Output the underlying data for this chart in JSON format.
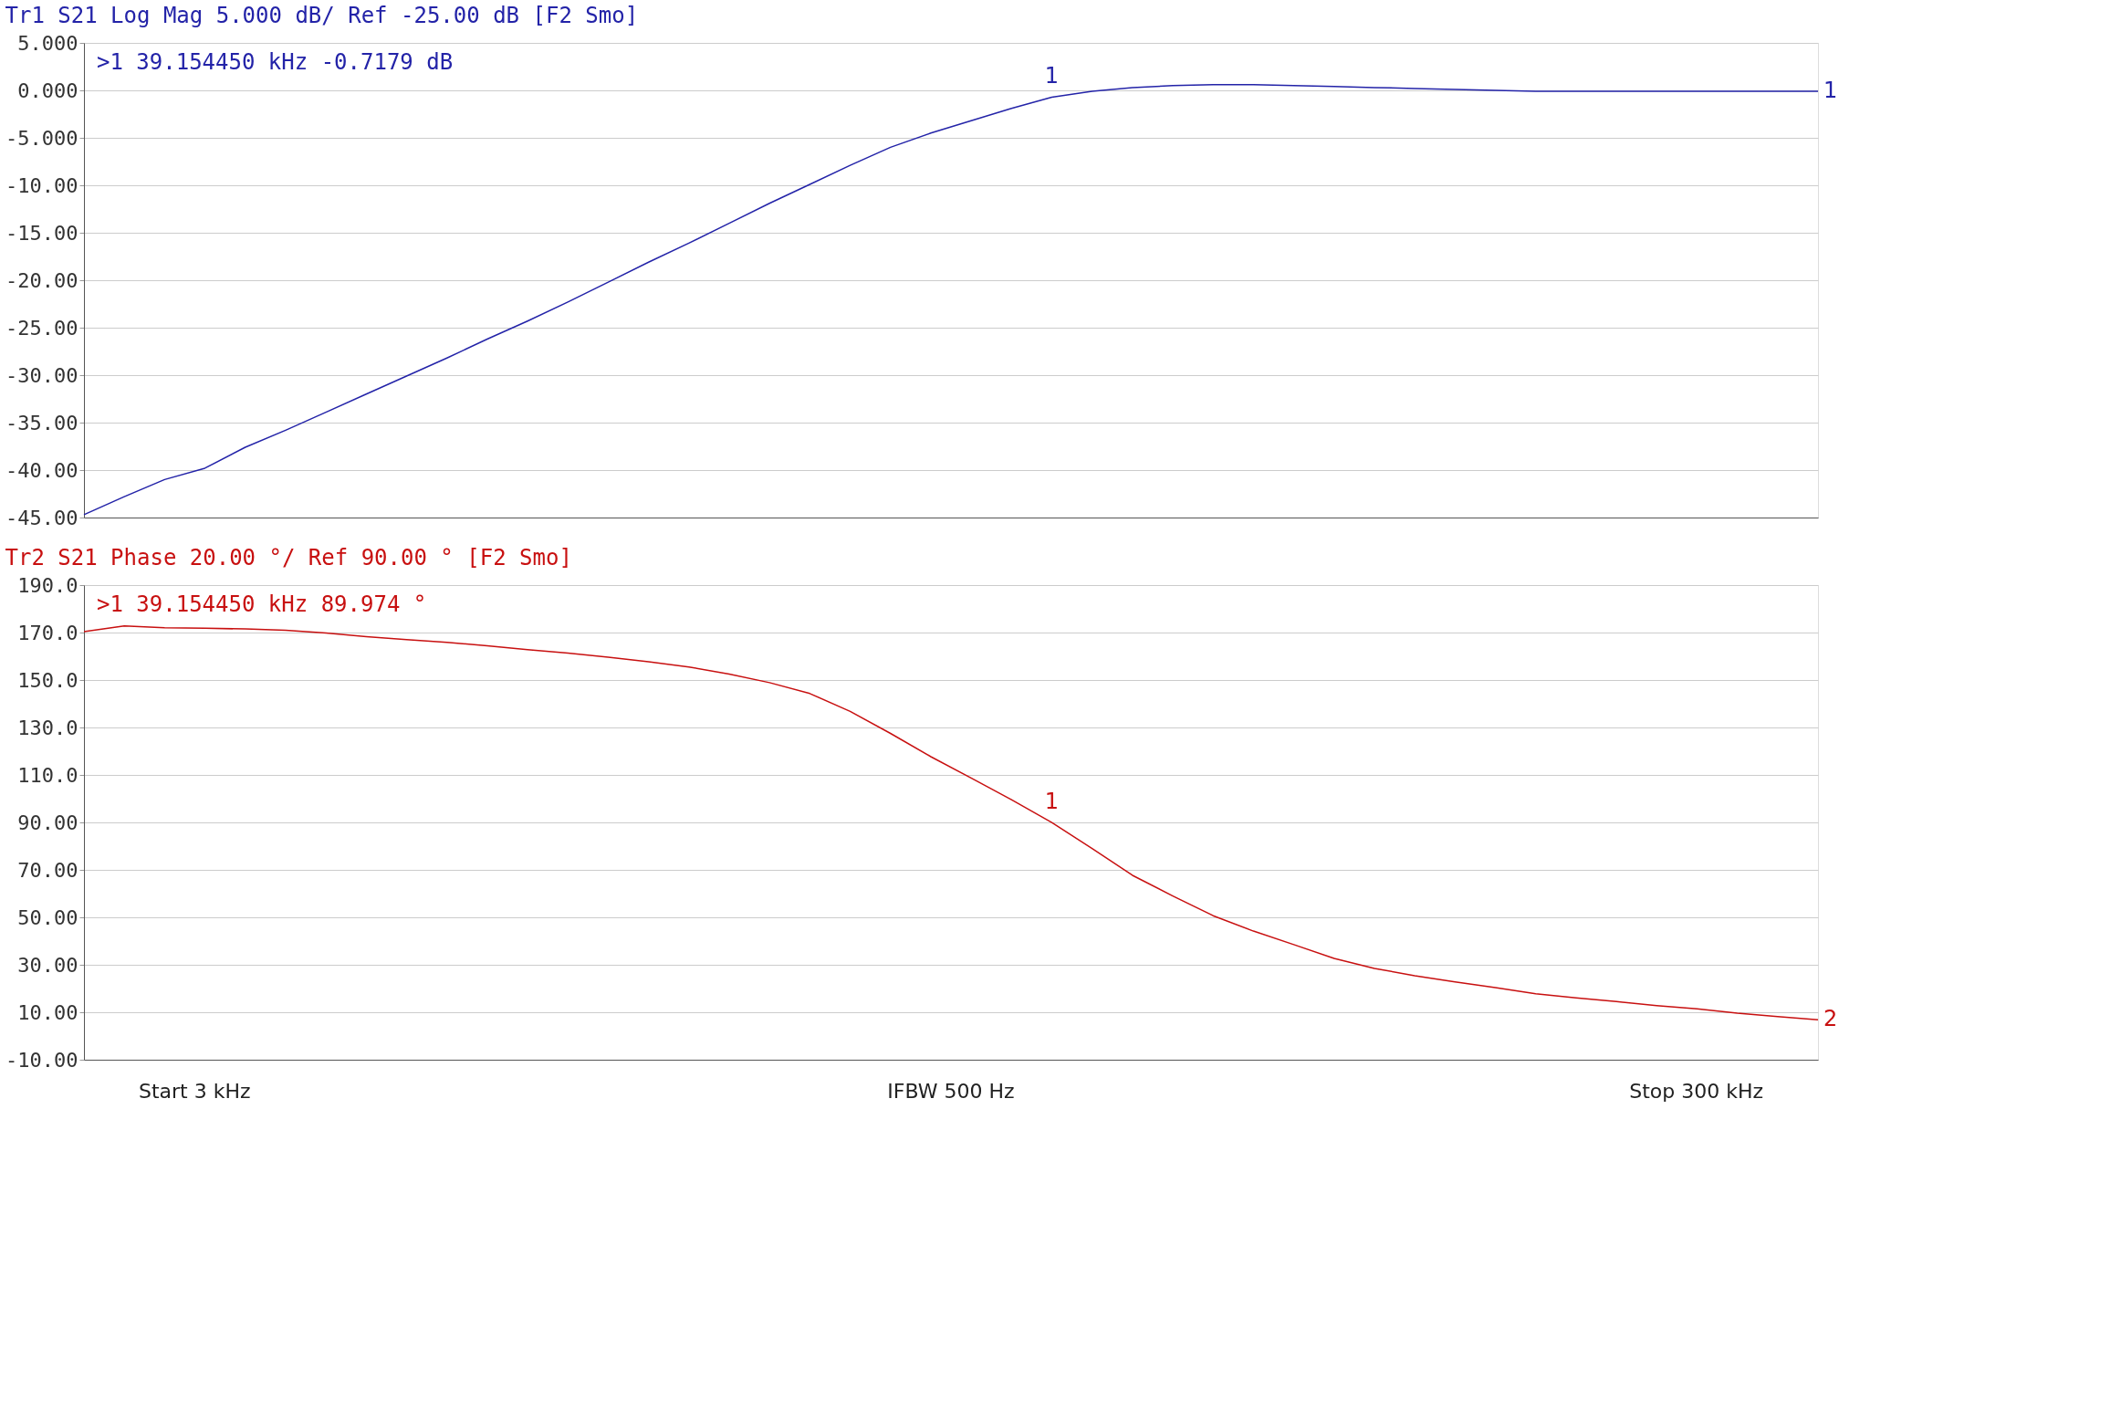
{
  "chart_data": [
    {
      "type": "line",
      "title": "Tr1 S21 Log Mag 5.000 dB/ Ref -25.00 dB [F2 Smo]",
      "categories": [
        null,
        null,
        null,
        null,
        null,
        null,
        null,
        null,
        null,
        null,
        null,
        null,
        null,
        null,
        null,
        null,
        null,
        null,
        null,
        null,
        null,
        null,
        null,
        null,
        null,
        null,
        null,
        null,
        null,
        null,
        null,
        null,
        null,
        null,
        null,
        null,
        null,
        null,
        null,
        null,
        null,
        null,
        null,
        null
      ],
      "series": [
        {
          "name": "1",
          "color": "#2323a8",
          "values": [
            -44.7,
            -42.8,
            -41.0,
            -39.8,
            -37.6,
            -35.8,
            -33.9,
            -32.0,
            -30.1,
            -28.2,
            -26.2,
            -24.3,
            -22.3,
            -20.2,
            -18.1,
            -16.1,
            -14.0,
            -11.9,
            -9.9,
            -7.9,
            -6.0,
            -4.5,
            -3.2,
            -1.9,
            -0.7179,
            -0.1,
            0.3,
            0.5,
            0.6,
            0.6,
            0.5,
            0.4,
            0.3,
            0.2,
            0.1,
            0.0,
            -0.1,
            -0.1,
            -0.1,
            -0.1,
            -0.1,
            -0.1,
            -0.1,
            -0.1
          ]
        }
      ],
      "ylim": [
        -45,
        5
      ],
      "yticks": [
        {
          "value": 5,
          "label": "5.000"
        },
        {
          "value": 0,
          "label": "0.000"
        },
        {
          "value": -5,
          "label": "-5.000"
        },
        {
          "value": -10,
          "label": "-10.00"
        },
        {
          "value": -15,
          "label": "-15.00"
        },
        {
          "value": -20,
          "label": "-20.00"
        },
        {
          "value": -25,
          "label": "-25.00"
        },
        {
          "value": -30,
          "label": "-30.00"
        },
        {
          "value": -35,
          "label": "-35.00"
        },
        {
          "value": -40,
          "label": "-40.00"
        },
        {
          "value": -45,
          "label": "-45.00"
        }
      ],
      "tick_labels": "y",
      "grid": "y",
      "annotations": [
        ">1  39.154450 kHz -0.7179 dB",
        {
          "text": "1",
          "y": -0.7179
        }
      ]
    },
    {
      "type": "line",
      "title": "Tr2 S21 Phase 20.00 °/ Ref 90.00 ° [F2 Smo]",
      "categories": [
        null,
        null,
        null,
        null,
        null,
        null,
        null,
        null,
        null,
        null,
        null,
        null,
        null,
        null,
        null,
        null,
        null,
        null,
        null,
        null,
        null,
        null,
        null,
        null,
        null,
        null,
        null,
        null,
        null,
        null,
        null,
        null,
        null,
        null,
        null,
        null,
        null,
        null,
        null,
        null,
        null,
        null,
        null,
        null
      ],
      "series": [
        {
          "name": "2",
          "color": "#c81010",
          "values": [
            170.4,
            172.8,
            172.0,
            171.8,
            171.5,
            171.0,
            169.8,
            168.3,
            167.0,
            165.9,
            164.4,
            162.8,
            161.3,
            159.6,
            157.7,
            155.5,
            152.5,
            148.9,
            144.3,
            136.8,
            127.5,
            117.7,
            108.7,
            99.6,
            89.974,
            79.0,
            67.7,
            59.0,
            50.7,
            44.2,
            38.5,
            32.7,
            28.5,
            25.4,
            22.8,
            20.4,
            17.8,
            16.1,
            14.5,
            12.8,
            11.4,
            9.6,
            8.2,
            6.8
          ]
        }
      ],
      "ylim": [
        -10,
        190
      ],
      "yticks": [
        {
          "value": 190,
          "label": "190.0"
        },
        {
          "value": 170,
          "label": "170.0"
        },
        {
          "value": 150,
          "label": "150.0"
        },
        {
          "value": 130,
          "label": "130.0"
        },
        {
          "value": 110,
          "label": "110.0"
        },
        {
          "value": 90,
          "label": "90.00"
        },
        {
          "value": 70,
          "label": "70.00"
        },
        {
          "value": 50,
          "label": "50.00"
        },
        {
          "value": 30,
          "label": "30.00"
        },
        {
          "value": 10,
          "label": "10.00"
        },
        {
          "value": -10,
          "label": "-10.00"
        }
      ],
      "tick_labels": "y",
      "grid": "y",
      "annotations": [
        ">1  39.154450 kHz  89.974 °",
        "Start 3 kHz",
        "IFBW 500 Hz",
        "Stop 300 kHz",
        {
          "text": "1",
          "y": 89.974
        }
      ]
    }
  ]
}
